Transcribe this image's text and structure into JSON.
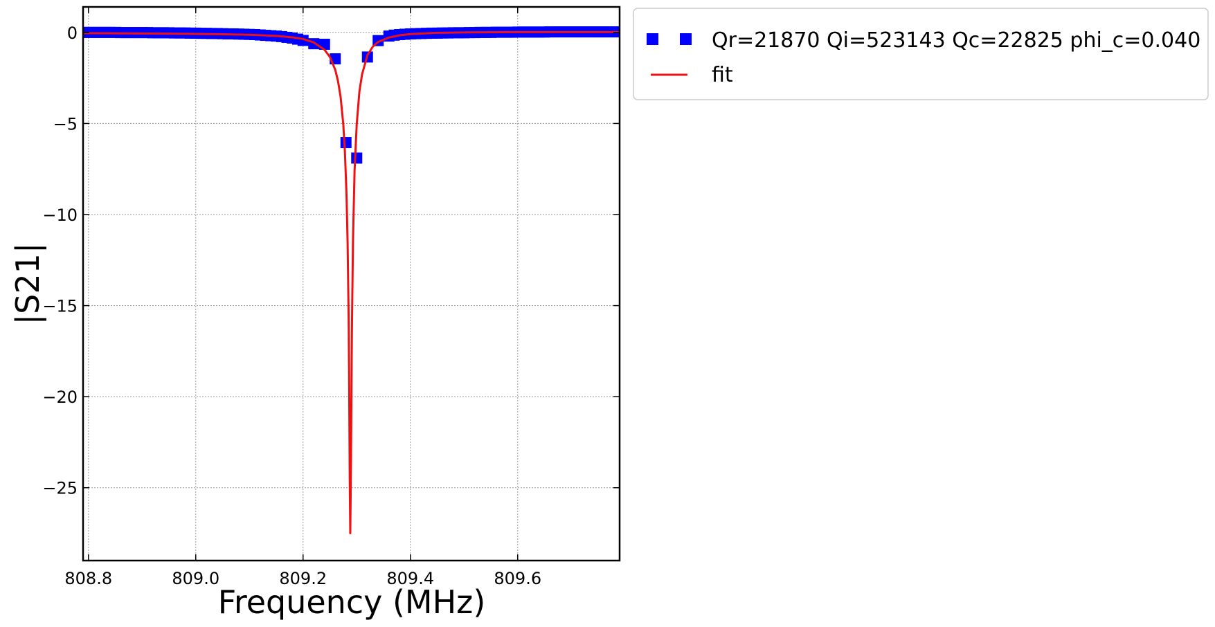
{
  "chart_data": {
    "type": "scatter",
    "xlabel": "Frequency (MHz)",
    "ylabel": "|S21|",
    "xlim": [
      808.79,
      809.79
    ],
    "ylim": [
      -29,
      1.4
    ],
    "xticks": [
      808.8,
      809.0,
      809.2,
      809.4,
      809.6
    ],
    "xtick_labels": [
      "808.8",
      "809.0",
      "809.2",
      "809.4",
      "809.6"
    ],
    "yticks": [
      0,
      -5,
      -10,
      -15,
      -20,
      -25
    ],
    "ytick_labels": [
      "0",
      "−5",
      "−10",
      "−15",
      "−20",
      "−25"
    ],
    "grid": true,
    "legend_position": "outside-right-top",
    "colors": {
      "data": "#0000ff",
      "fit": "#ee1111",
      "grid": "#9a9a9a",
      "legend_border": "#cccccc"
    },
    "series": [
      {
        "name": "Qr=21870 Qi=523143 Qc=22825 phi_c=0.040",
        "kind": "scatter",
        "marker": "square",
        "x": [
          808.79,
          808.8,
          808.81,
          808.82,
          808.83,
          808.84,
          808.85,
          808.86,
          808.87,
          808.88,
          808.89,
          808.9,
          808.91,
          808.92,
          808.93,
          808.94,
          808.95,
          808.96,
          808.97,
          808.98,
          808.99,
          809.0,
          809.01,
          809.02,
          809.03,
          809.04,
          809.05,
          809.06,
          809.07,
          809.08,
          809.09,
          809.1,
          809.11,
          809.12,
          809.13,
          809.14,
          809.15,
          809.16,
          809.17,
          809.18,
          809.19,
          809.2,
          809.22,
          809.24,
          809.26,
          809.28,
          809.3,
          809.32,
          809.34,
          809.36,
          809.37,
          809.38,
          809.39,
          809.4,
          809.41,
          809.42,
          809.43,
          809.44,
          809.45,
          809.46,
          809.47,
          809.48,
          809.49,
          809.5,
          809.51,
          809.52,
          809.53,
          809.54,
          809.55,
          809.56,
          809.57,
          809.58,
          809.59,
          809.6,
          809.61,
          809.62,
          809.63,
          809.64,
          809.65,
          809.66,
          809.67,
          809.68,
          809.69,
          809.7,
          809.71,
          809.72,
          809.73,
          809.74,
          809.75,
          809.76,
          809.77,
          809.78,
          809.79
        ],
        "y": [
          0.0,
          0.0,
          0.0,
          0.0,
          0.0,
          0.0,
          0.0,
          -0.01,
          -0.01,
          -0.01,
          -0.01,
          -0.01,
          -0.01,
          -0.02,
          -0.02,
          -0.02,
          -0.02,
          -0.03,
          -0.03,
          -0.03,
          -0.04,
          -0.04,
          -0.05,
          -0.05,
          -0.06,
          -0.06,
          -0.07,
          -0.08,
          -0.08,
          -0.09,
          -0.1,
          -0.11,
          -0.12,
          -0.14,
          -0.16,
          -0.18,
          -0.2,
          -0.23,
          -0.27,
          -0.31,
          -0.37,
          -0.44,
          -0.62,
          -0.65,
          -1.45,
          -6.05,
          -6.9,
          -1.35,
          -0.45,
          -0.2,
          -0.15,
          -0.12,
          -0.1,
          -0.08,
          -0.07,
          -0.06,
          -0.05,
          -0.04,
          -0.04,
          -0.03,
          -0.03,
          -0.02,
          -0.02,
          -0.02,
          -0.01,
          -0.01,
          0.0,
          0.0,
          0.0,
          0.01,
          0.01,
          0.01,
          0.01,
          0.02,
          0.02,
          0.02,
          0.02,
          0.02,
          0.02,
          0.03,
          0.03,
          0.03,
          0.03,
          0.03,
          0.03,
          0.03,
          0.03,
          0.03,
          0.03,
          0.03,
          0.03,
          0.03,
          0.03
        ]
      },
      {
        "name": "fit",
        "kind": "line",
        "x": [
          808.79,
          808.85,
          808.9,
          808.95,
          809.0,
          809.05,
          809.1,
          809.15,
          809.18,
          809.2,
          809.22,
          809.24,
          809.25,
          809.26,
          809.265,
          809.27,
          809.275,
          809.278,
          809.281,
          809.283,
          809.285,
          809.286,
          809.287,
          809.288,
          809.289,
          809.291,
          809.293,
          809.296,
          809.3,
          809.305,
          809.31,
          809.32,
          809.33,
          809.34,
          809.36,
          809.38,
          809.4,
          809.45,
          809.5,
          809.55,
          809.6,
          809.65,
          809.7,
          809.75,
          809.79
        ],
        "y": [
          -0.04,
          -0.05,
          -0.06,
          -0.07,
          -0.08,
          -0.1,
          -0.13,
          -0.19,
          -0.27,
          -0.36,
          -0.55,
          -0.95,
          -1.35,
          -2.05,
          -2.65,
          -3.55,
          -5.05,
          -6.55,
          -8.9,
          -11.5,
          -15.8,
          -19.5,
          -24.5,
          -27.5,
          -24.5,
          -16.5,
          -11.5,
          -7.6,
          -5.05,
          -3.25,
          -2.3,
          -1.25,
          -0.78,
          -0.52,
          -0.28,
          -0.16,
          -0.09,
          -0.02,
          0.0,
          0.01,
          0.02,
          0.02,
          0.02,
          0.02,
          0.02
        ]
      }
    ]
  }
}
